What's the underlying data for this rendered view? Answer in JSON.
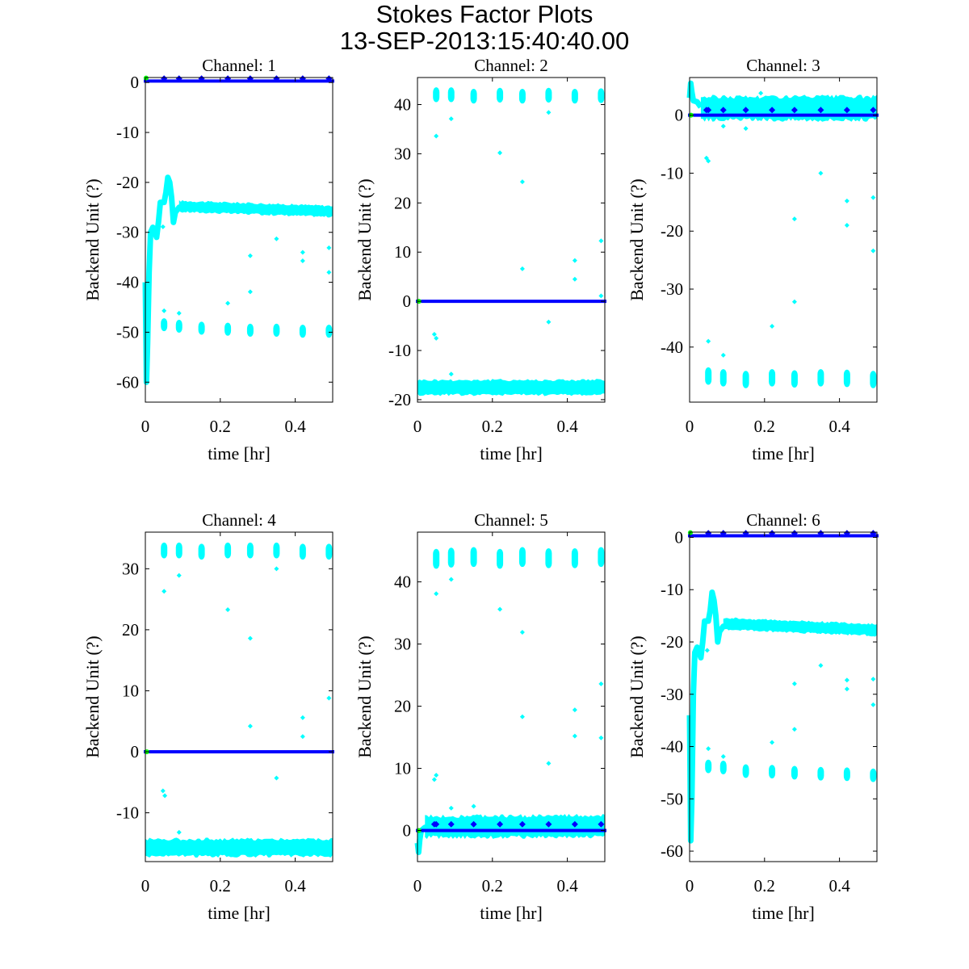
{
  "figure": {
    "title": "Stokes Factor Plots",
    "subtitle": "13-SEP-2013:15:40:40.00"
  },
  "colors": {
    "cyan_series": "#00ffff",
    "blue_series": "#0000ff",
    "green_marker": "#00ff00",
    "axes": "#000000"
  },
  "chart_data": [
    {
      "type": "scatter",
      "title": "Channel: 1",
      "xlabel": "time [hr]",
      "ylabel": "Backend Unit (?)",
      "xlim": [
        0,
        0.5
      ],
      "ylim": [
        -64,
        1
      ],
      "xticks": [
        "0",
        "0.2",
        "0.4"
      ],
      "yticks": [
        "0",
        "-10",
        "-20",
        "-30",
        "-40",
        "-50",
        "-60"
      ],
      "series": [
        {
          "name": "blue",
          "color": "#0000ff",
          "band": {
            "x": [
              0,
              0.5
            ],
            "y": [
              0.3,
              0.3
            ]
          },
          "markers_x": [
            0.05,
            0.09,
            0.15,
            0.22,
            0.28,
            0.35,
            0.42,
            0.49
          ],
          "markers_y": 0.8
        },
        {
          "name": "cyan",
          "color": "#00ffff",
          "transient_x": [
            0,
            0.003,
            0.006,
            0.01,
            0.014,
            0.02,
            0.025,
            0.03,
            0.035,
            0.04,
            0.045,
            0.05,
            0.055,
            0.06,
            0.065,
            0.07,
            0.075,
            0.08,
            0.09,
            0.1
          ],
          "transient_y": [
            -40,
            -60,
            -52,
            -38,
            -30,
            -29,
            -30,
            -31,
            -28,
            -24,
            -24,
            -24,
            -22,
            -19,
            -20,
            -23,
            -28,
            -26,
            -25,
            -25
          ],
          "band": {
            "x": [
              0.09,
              0.5
            ],
            "y": [
              -24.8,
              -25.8
            ]
          },
          "band_half_width": 1.1,
          "clusters_x": [
            0.05,
            0.09,
            0.15,
            0.22,
            0.28,
            0.35,
            0.42,
            0.49
          ],
          "clusters_y": [
            -48.5,
            -48.8,
            -49.2,
            -49.4,
            -49.6,
            -49.6,
            -49.8,
            -49.8
          ],
          "cluster_half_height": 1.3,
          "outliers": [
            [
              0.05,
              -45.7
            ],
            [
              0.09,
              -46.2
            ],
            [
              0.22,
              -44.2
            ],
            [
              0.28,
              -34.7
            ],
            [
              0.28,
              -41.9
            ],
            [
              0.35,
              -31.3
            ],
            [
              0.42,
              -34.0
            ],
            [
              0.42,
              -35.7
            ],
            [
              0.49,
              -33.1
            ],
            [
              0.49,
              -38.0
            ],
            [
              0.047,
              -28.9
            ]
          ]
        },
        {
          "name": "green",
          "color": "#00ff00",
          "points": [
            [
              0.002,
              0.9
            ]
          ]
        }
      ]
    },
    {
      "type": "scatter",
      "title": "Channel: 2",
      "xlabel": "time [hr]",
      "ylabel": "Backend Unit (?)",
      "xlim": [
        0,
        0.5
      ],
      "ylim": [
        -20.5,
        45.5
      ],
      "xticks": [
        "0",
        "0.2",
        "0.4"
      ],
      "yticks": [
        "40",
        "30",
        "20",
        "10",
        "0",
        "-10",
        "-20"
      ],
      "series": [
        {
          "name": "blue",
          "color": "#0000ff",
          "band": {
            "x": [
              0,
              0.5
            ],
            "y": [
              0,
              0
            ]
          },
          "markers_x": [],
          "markers_y": 0
        },
        {
          "name": "cyan",
          "color": "#00ffff",
          "transient_x": [],
          "transient_y": [],
          "band": {
            "x": [
              0,
              0.5
            ],
            "y": [
              -17.5,
              -17.5
            ]
          },
          "band_half_width": 1.5,
          "clusters_x": [
            0.05,
            0.09,
            0.15,
            0.22,
            0.28,
            0.35,
            0.42,
            0.49
          ],
          "clusters_y": [
            42,
            42,
            41.7,
            41.9,
            41.7,
            41.9,
            41.7,
            41.8
          ],
          "cluster_half_height": 1.5,
          "outliers": [
            [
              0.05,
              33.6
            ],
            [
              0.09,
              37.1
            ],
            [
              0.22,
              30.2
            ],
            [
              0.28,
              24.3
            ],
            [
              0.28,
              6.6
            ],
            [
              0.35,
              38.4
            ],
            [
              0.35,
              -4.2
            ],
            [
              0.42,
              8.3
            ],
            [
              0.42,
              4.5
            ],
            [
              0.49,
              12.3
            ],
            [
              0.49,
              1.1
            ],
            [
              0.045,
              -6.7
            ],
            [
              0.05,
              -7.5
            ],
            [
              0.09,
              -14.8
            ]
          ]
        },
        {
          "name": "green",
          "color": "#00ff00",
          "points": [
            [
              0.004,
              0
            ]
          ]
        }
      ]
    },
    {
      "type": "scatter",
      "title": "Channel: 3",
      "xlabel": "time [hr]",
      "ylabel": "Backend Unit (?)",
      "xlim": [
        0,
        0.5
      ],
      "ylim": [
        -49.5,
        6.5
      ],
      "xticks": [
        "0",
        "0.2",
        "0.4"
      ],
      "yticks": [
        "0",
        "-10",
        "-20",
        "-30",
        "-40"
      ],
      "series": [
        {
          "name": "blue",
          "color": "#0000ff",
          "band": {
            "x": [
              0,
              0.5
            ],
            "y": [
              0,
              0
            ]
          },
          "markers_x": [
            0.045,
            0.05,
            0.09,
            0.15,
            0.22,
            0.28,
            0.35,
            0.42,
            0.49
          ],
          "markers_y": 0.9
        },
        {
          "name": "cyan",
          "color": "#00ffff",
          "transient_x": [
            0,
            0.003,
            0.006,
            0.01,
            0.02,
            0.03
          ],
          "transient_y": [
            3,
            5.5,
            4,
            2.5,
            2.3,
            1.4
          ],
          "band": {
            "x": [
              0.03,
              0.5
            ],
            "y": [
              1.2,
              1.2
            ]
          },
          "band_half_width": 2.0,
          "clusters_x": [
            0.05,
            0.09,
            0.15,
            0.22,
            0.28,
            0.35,
            0.42,
            0.49
          ],
          "clusters_y": [
            -45,
            -45.3,
            -45.6,
            -45.3,
            -45.5,
            -45.3,
            -45.4,
            -45.6
          ],
          "cluster_half_height": 1.5,
          "outliers": [
            [
              0.045,
              -7.4
            ],
            [
              0.05,
              -7.9
            ],
            [
              0.09,
              -1.9
            ],
            [
              0.15,
              -2.3
            ],
            [
              0.19,
              3.8
            ],
            [
              0.05,
              -39
            ],
            [
              0.09,
              -41.4
            ],
            [
              0.22,
              -36.4
            ],
            [
              0.28,
              -32.2
            ],
            [
              0.28,
              -17.9
            ],
            [
              0.35,
              -10
            ],
            [
              0.42,
              -14.8
            ],
            [
              0.42,
              -19
            ],
            [
              0.49,
              -14.2
            ],
            [
              0.49,
              -23.4
            ]
          ]
        },
        {
          "name": "green",
          "color": "#00ff00",
          "points": [
            [
              0.004,
              0
            ]
          ]
        }
      ]
    },
    {
      "type": "scatter",
      "title": "Channel: 4",
      "xlabel": "time [hr]",
      "ylabel": "Backend Unit (?)",
      "xlim": [
        0,
        0.5
      ],
      "ylim": [
        -18,
        36
      ],
      "xticks": [
        "0",
        "0.2",
        "0.4"
      ],
      "yticks": [
        "30",
        "20",
        "10",
        "0",
        "-10"
      ],
      "series": [
        {
          "name": "blue",
          "color": "#0000ff",
          "band": {
            "x": [
              0,
              0.5
            ],
            "y": [
              0,
              0
            ]
          },
          "markers_x": [],
          "markers_y": 0
        },
        {
          "name": "cyan",
          "color": "#00ffff",
          "transient_x": [],
          "transient_y": [],
          "band": {
            "x": [
              0,
              0.5
            ],
            "y": [
              -15.7,
              -15.7
            ]
          },
          "band_half_width": 1.4,
          "clusters_x": [
            0.05,
            0.09,
            0.15,
            0.22,
            0.28,
            0.35,
            0.42,
            0.49
          ],
          "clusters_y": [
            33,
            33,
            32.8,
            33,
            33,
            33,
            32.8,
            32.8
          ],
          "cluster_half_height": 1.3,
          "outliers": [
            [
              0.05,
              26.3
            ],
            [
              0.09,
              28.9
            ],
            [
              0.22,
              23.3
            ],
            [
              0.28,
              18.6
            ],
            [
              0.28,
              4.2
            ],
            [
              0.35,
              30
            ],
            [
              0.35,
              -4.3
            ],
            [
              0.42,
              5.6
            ],
            [
              0.42,
              2.5
            ],
            [
              0.49,
              8.8
            ],
            [
              0.047,
              -6.4
            ],
            [
              0.052,
              -7.2
            ],
            [
              0.09,
              -13.2
            ]
          ]
        },
        {
          "name": "green",
          "color": "#00ff00",
          "points": [
            [
              0.004,
              0
            ]
          ]
        }
      ]
    },
    {
      "type": "scatter",
      "title": "Channel: 5",
      "xlabel": "time [hr]",
      "ylabel": "Backend Unit (?)",
      "xlim": [
        0,
        0.5
      ],
      "ylim": [
        -5,
        48
      ],
      "xticks": [
        "0",
        "0.2",
        "0.4"
      ],
      "yticks": [
        "40",
        "30",
        "20",
        "10",
        "0"
      ],
      "series": [
        {
          "name": "blue",
          "color": "#0000ff",
          "band": {
            "x": [
              0,
              0.5
            ],
            "y": [
              0,
              0
            ]
          },
          "markers_x": [
            0.045,
            0.05,
            0.09,
            0.15,
            0.22,
            0.28,
            0.35,
            0.42,
            0.49
          ],
          "markers_y": 1.0
        },
        {
          "name": "cyan",
          "color": "#00ffff",
          "transient_x": [
            0,
            0.003,
            0.006,
            0.01,
            0.02,
            0.03
          ],
          "transient_y": [
            -2,
            -3.5,
            -1.5,
            0,
            0.5,
            0.6
          ],
          "band": {
            "x": [
              0.02,
              0.5
            ],
            "y": [
              0.6,
              0.7
            ]
          },
          "band_half_width": 1.7,
          "clusters_x": [
            0.05,
            0.09,
            0.15,
            0.22,
            0.28,
            0.35,
            0.42,
            0.49
          ],
          "clusters_y": [
            43.7,
            43.9,
            44,
            43.7,
            44,
            43.8,
            43.8,
            44
          ],
          "cluster_half_height": 1.6,
          "outliers": [
            [
              0.05,
              38.1
            ],
            [
              0.09,
              40.4
            ],
            [
              0.22,
              35.6
            ],
            [
              0.28,
              31.9
            ],
            [
              0.28,
              18.3
            ],
            [
              0.35,
              10.8
            ],
            [
              0.42,
              19.4
            ],
            [
              0.42,
              15.2
            ],
            [
              0.49,
              23.6
            ],
            [
              0.49,
              14.9
            ],
            [
              0.045,
              8.2
            ],
            [
              0.05,
              8.9
            ],
            [
              0.09,
              3.6
            ],
            [
              0.15,
              3.9
            ]
          ]
        },
        {
          "name": "green",
          "color": "#00ff00",
          "points": [
            [
              0.004,
              0
            ]
          ]
        }
      ]
    },
    {
      "type": "scatter",
      "title": "Channel: 6",
      "xlabel": "time [hr]",
      "ylabel": "Backend Unit (?)",
      "xlim": [
        0,
        0.5
      ],
      "ylim": [
        -62,
        1
      ],
      "xticks": [
        "0",
        "0.2",
        "0.4"
      ],
      "yticks": [
        "0",
        "-10",
        "-20",
        "-30",
        "-40",
        "-50",
        "-60"
      ],
      "series": [
        {
          "name": "blue",
          "color": "#0000ff",
          "band": {
            "x": [
              0,
              0.5
            ],
            "y": [
              0.3,
              0.3
            ]
          },
          "markers_x": [
            0.05,
            0.09,
            0.15,
            0.22,
            0.28,
            0.35,
            0.42,
            0.49
          ],
          "markers_y": 0.8
        },
        {
          "name": "cyan",
          "color": "#00ffff",
          "transient_x": [
            0,
            0.003,
            0.006,
            0.01,
            0.014,
            0.02,
            0.025,
            0.03,
            0.035,
            0.04,
            0.045,
            0.05,
            0.055,
            0.06,
            0.065,
            0.07,
            0.075,
            0.08,
            0.09,
            0.1
          ],
          "transient_y": [
            -34,
            -58,
            -50,
            -30,
            -22,
            -21,
            -22,
            -23,
            -20,
            -16,
            -16,
            -16,
            -14,
            -10.5,
            -12,
            -15,
            -20,
            -18,
            -17,
            -17
          ],
          "band": {
            "x": [
              0.09,
              0.5
            ],
            "y": [
              -16.5,
              -17.7
            ]
          },
          "band_half_width": 1.1,
          "clusters_x": [
            0.05,
            0.09,
            0.15,
            0.22,
            0.28,
            0.35,
            0.42,
            0.49
          ],
          "clusters_y": [
            -43.8,
            -44,
            -44.7,
            -44.8,
            -45,
            -45.2,
            -45.3,
            -45.5
          ],
          "cluster_half_height": 1.3,
          "outliers": [
            [
              0.05,
              -40.4
            ],
            [
              0.09,
              -41.9
            ],
            [
              0.22,
              -39.2
            ],
            [
              0.28,
              -36.7
            ],
            [
              0.28,
              -28
            ],
            [
              0.35,
              -24.5
            ],
            [
              0.42,
              -27.3
            ],
            [
              0.42,
              -29
            ],
            [
              0.49,
              -27.1
            ],
            [
              0.49,
              -32
            ],
            [
              0.047,
              -21.6
            ]
          ]
        },
        {
          "name": "green",
          "color": "#00ff00",
          "points": [
            [
              0.002,
              0.9
            ]
          ]
        }
      ]
    }
  ]
}
